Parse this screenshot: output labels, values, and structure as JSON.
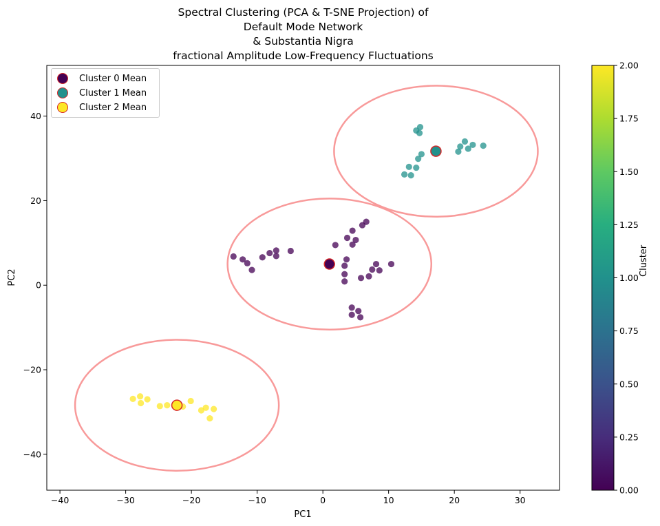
{
  "title_lines": [
    "Spectral Clustering (PCA & T-SNE Projection) of",
    "Default Mode Network",
    "& Substantia Nigra",
    "fractional Amplitude Low-Frequency Fluctuations"
  ],
  "legend": [
    {
      "label": "Cluster 0 Mean",
      "color": "#440154"
    },
    {
      "label": "Cluster 1 Mean",
      "color": "#21918c"
    },
    {
      "label": "Cluster 2 Mean",
      "color": "#fde725"
    }
  ],
  "colorbar": {
    "label": "Cluster",
    "ticks": [
      "0.00",
      "0.25",
      "0.50",
      "0.75",
      "1.00",
      "1.25",
      "1.50",
      "1.75",
      "2.00"
    ]
  },
  "chart_data": {
    "type": "scatter",
    "xlabel": "PC1",
    "ylabel": "PC2",
    "xlim": [
      -42,
      36
    ],
    "ylim": [
      -48.5,
      52
    ],
    "xticks": [
      -40,
      -30,
      -20,
      -10,
      0,
      10,
      20,
      30
    ],
    "yticks": [
      -40,
      -20,
      0,
      20,
      40
    ],
    "grid": false,
    "legend_position": "top-left",
    "colormap": "viridis",
    "series": [
      {
        "cluster": 0,
        "color": "#440154",
        "points": [
          [
            -13.6,
            6.8
          ],
          [
            -12.2,
            6.1
          ],
          [
            -11.5,
            5.2
          ],
          [
            -10.8,
            3.6
          ],
          [
            -9.2,
            6.6
          ],
          [
            -8.1,
            7.6
          ],
          [
            -7.1,
            8.2
          ],
          [
            -7.1,
            6.9
          ],
          [
            -4.9,
            8.1
          ],
          [
            1.9,
            9.5
          ],
          [
            3.7,
            11.2
          ],
          [
            4.5,
            12.9
          ],
          [
            5.0,
            10.7
          ],
          [
            4.5,
            9.6
          ],
          [
            6.0,
            14.2
          ],
          [
            6.6,
            15.0
          ],
          [
            3.6,
            6.1
          ],
          [
            3.3,
            4.6
          ],
          [
            3.3,
            2.6
          ],
          [
            3.3,
            0.9
          ],
          [
            5.8,
            1.7
          ],
          [
            7.0,
            2.1
          ],
          [
            7.5,
            3.7
          ],
          [
            8.1,
            5.0
          ],
          [
            8.6,
            3.5
          ],
          [
            10.4,
            5.0
          ],
          [
            4.4,
            -5.3
          ],
          [
            5.4,
            -6.1
          ],
          [
            4.4,
            -7.0
          ],
          [
            5.7,
            -7.6
          ]
        ]
      },
      {
        "cluster": 1,
        "color": "#21918c",
        "points": [
          [
            14.2,
            36.6
          ],
          [
            14.8,
            37.4
          ],
          [
            14.7,
            36.0
          ],
          [
            15.0,
            31.0
          ],
          [
            14.5,
            29.9
          ],
          [
            12.4,
            26.2
          ],
          [
            13.1,
            28.0
          ],
          [
            13.4,
            26.0
          ],
          [
            14.2,
            27.8
          ],
          [
            20.6,
            31.6
          ],
          [
            20.9,
            32.8
          ],
          [
            21.6,
            34.0
          ],
          [
            22.1,
            32.3
          ],
          [
            22.8,
            33.2
          ],
          [
            24.4,
            33.0
          ]
        ]
      },
      {
        "cluster": 2,
        "color": "#fde725",
        "points": [
          [
            -28.9,
            -26.9
          ],
          [
            -27.8,
            -26.3
          ],
          [
            -27.7,
            -27.9
          ],
          [
            -26.7,
            -27.0
          ],
          [
            -24.8,
            -28.6
          ],
          [
            -23.7,
            -28.4
          ],
          [
            -21.3,
            -28.7
          ],
          [
            -20.1,
            -27.4
          ],
          [
            -18.5,
            -29.6
          ],
          [
            -17.8,
            -29.0
          ],
          [
            -16.6,
            -29.3
          ],
          [
            -17.2,
            -31.5
          ]
        ]
      }
    ],
    "means": [
      {
        "label": "Cluster 0 Mean",
        "x": 1.0,
        "y": 5.0,
        "color": "#440154"
      },
      {
        "label": "Cluster 1 Mean",
        "x": 17.2,
        "y": 31.7,
        "color": "#21918c"
      },
      {
        "label": "Cluster 2 Mean",
        "x": -22.2,
        "y": -28.4,
        "color": "#fde725"
      }
    ],
    "ellipses": [
      {
        "cx": 1.0,
        "cy": 5.0,
        "rx": 15.5,
        "ry": 15.5
      },
      {
        "cx": 17.2,
        "cy": 31.7,
        "rx": 15.5,
        "ry": 15.5
      },
      {
        "cx": -22.2,
        "cy": -28.4,
        "rx": 15.5,
        "ry": 15.5
      }
    ],
    "ellipse_color": "#f89a9a"
  }
}
